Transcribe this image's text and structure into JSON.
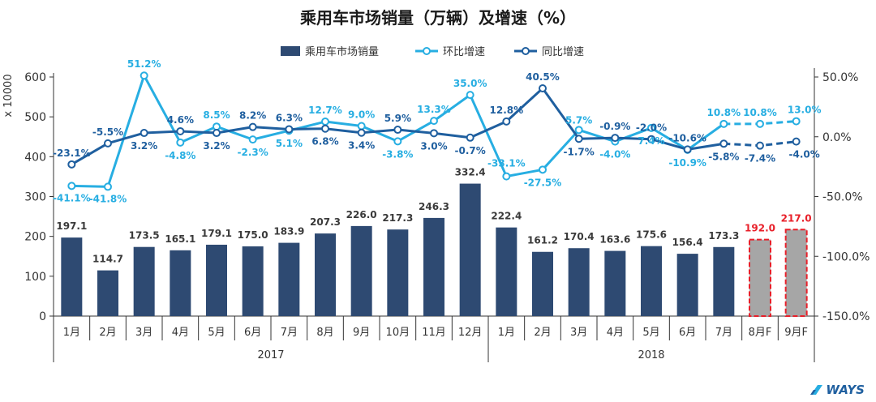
{
  "chart_data": {
    "type": "bar+line",
    "title": "乘用车市场销量（万辆）及增速（%）",
    "ylabel_left": "x 10000",
    "ylim_left": [
      0,
      600
    ],
    "yticks_left": [
      "0",
      "100",
      "200",
      "300",
      "400",
      "500",
      "600"
    ],
    "ylim_right": [
      -150,
      50
    ],
    "yticks_right": [
      "-150.0%",
      "-100.0%",
      "-50.0%",
      "0.0%",
      "50.0%"
    ],
    "categories": [
      "1月",
      "2月",
      "3月",
      "4月",
      "5月",
      "6月",
      "7月",
      "8月",
      "9月",
      "10月",
      "11月",
      "12月",
      "1月",
      "2月",
      "3月",
      "4月",
      "5月",
      "6月",
      "7月",
      "8月F",
      "9月F"
    ],
    "year_groups": [
      {
        "label": "2017",
        "count": 12
      },
      {
        "label": "2018",
        "count": 9
      }
    ],
    "series": [
      {
        "name": "乘用车市场销量",
        "kind": "bar",
        "values": [
          197.1,
          114.7,
          173.5,
          165.1,
          179.1,
          175.0,
          183.9,
          207.3,
          226.0,
          217.3,
          246.3,
          332.4,
          222.4,
          161.2,
          170.4,
          163.6,
          175.6,
          156.4,
          173.3,
          192.0,
          217.0
        ],
        "labels": [
          "197.1",
          "114.7",
          "173.5",
          "165.1",
          "179.1",
          "175.0",
          "183.9",
          "207.3",
          "226.0",
          "217.3",
          "246.3",
          "332.4",
          "222.4",
          "161.2",
          "170.4",
          "163.6",
          "175.6",
          "156.4",
          "173.3",
          "192.0",
          "217.0"
        ],
        "forecast_from": 19
      },
      {
        "name": "环比增速",
        "kind": "line",
        "values": [
          -41.1,
          -41.8,
          51.2,
          -4.8,
          8.5,
          -2.3,
          5.1,
          12.7,
          9.0,
          -3.8,
          13.3,
          35.0,
          -33.1,
          -27.5,
          5.7,
          -4.0,
          7.4,
          -10.9,
          10.8,
          10.8,
          13.0
        ],
        "labels": [
          "-41.1%",
          "-41.8%",
          "51.2%",
          "-4.8%",
          "8.5%",
          "-2.3%",
          "5.1%",
          "12.7%",
          "9.0%",
          "-3.8%",
          "13.3%",
          "35.0%",
          "-33.1%",
          "-27.5%",
          "5.7%",
          "-4.0%",
          "7.4%",
          "-10.9%",
          "10.8%",
          "10.8%",
          "13.0%"
        ],
        "forecast_from": 19
      },
      {
        "name": "同比增速",
        "kind": "line",
        "values": [
          -23.1,
          -5.5,
          3.2,
          4.6,
          3.2,
          8.2,
          6.3,
          6.8,
          3.4,
          5.9,
          3.0,
          -0.7,
          12.8,
          40.5,
          -1.7,
          -0.9,
          -2.0,
          -10.6,
          -5.8,
          -7.4,
          -4.0
        ],
        "labels": [
          "-23.1%",
          "-5.5%",
          "3.2%",
          "4.6%",
          "3.2%",
          "8.2%",
          "6.3%",
          "6.8%",
          "3.4%",
          "5.9%",
          "3.0%",
          "-0.7%",
          "12.8%",
          "40.5%",
          "-1.7%",
          "-0.9%",
          "-2.0%",
          "-10.6%",
          "-5.8%",
          "-7.4%",
          "-4.0%"
        ],
        "forecast_from": 19
      }
    ],
    "legend_position": "top-center",
    "grid": false
  },
  "colors": {
    "bar": "#2e4a72",
    "bar_forecast": "#a6a6a6",
    "bar_forecast_border": "#e8202a",
    "forecast_label": "#e8202a",
    "mom_line": "#27aee2",
    "yoy_line": "#1f5f9f",
    "axis": "#333333",
    "text": "#333333"
  },
  "brand": {
    "name": "WAYS"
  }
}
